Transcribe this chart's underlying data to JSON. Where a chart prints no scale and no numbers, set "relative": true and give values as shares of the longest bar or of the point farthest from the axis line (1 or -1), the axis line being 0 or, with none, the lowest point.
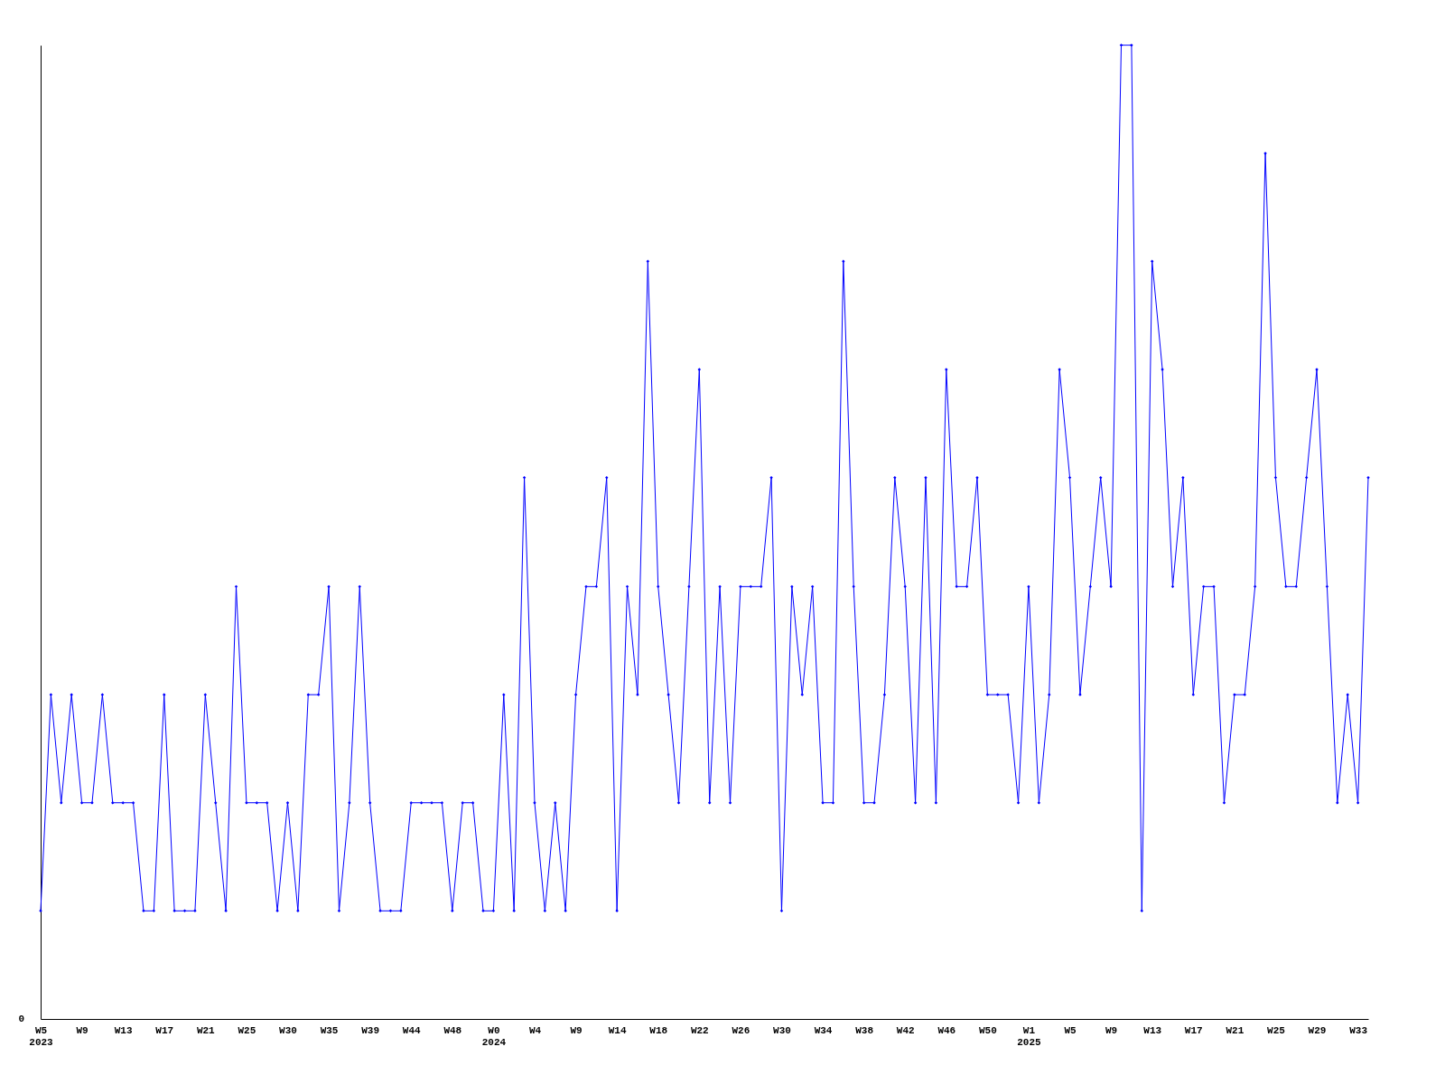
{
  "chart_data": {
    "type": "line",
    "relative": true,
    "marker": "diamond",
    "line_style": "solid",
    "grid": false,
    "annotations": [
      "0"
    ],
    "categories": [
      "W5\n2023",
      null,
      null,
      null,
      "W9",
      null,
      null,
      null,
      "W13",
      null,
      null,
      null,
      "W17",
      null,
      null,
      null,
      "W21",
      null,
      null,
      null,
      "W25",
      null,
      null,
      null,
      "W30",
      null,
      null,
      null,
      "W35",
      null,
      null,
      null,
      "W39",
      null,
      null,
      null,
      "W44",
      null,
      null,
      null,
      "W48",
      null,
      null,
      null,
      "W0\n2024",
      null,
      null,
      null,
      "W4",
      null,
      null,
      null,
      "W9",
      null,
      null,
      null,
      "W14",
      null,
      null,
      null,
      "W18",
      null,
      null,
      null,
      "W22",
      null,
      null,
      null,
      "W26",
      null,
      null,
      null,
      "W30",
      null,
      null,
      null,
      "W34",
      null,
      null,
      null,
      "W38",
      null,
      null,
      null,
      "W42",
      null,
      null,
      null,
      "W46",
      null,
      null,
      null,
      "W50",
      null,
      null,
      null,
      "W1\n2025",
      null,
      null,
      null,
      "W5",
      null,
      null,
      null,
      "W9",
      null,
      null,
      null,
      "W13",
      null,
      null,
      null,
      "W17",
      null,
      null,
      null,
      "W21",
      null,
      null,
      null,
      "W25",
      null,
      null,
      null,
      "W29",
      null,
      null,
      null,
      "W33",
      null
    ],
    "series": [
      {
        "color": "#0000ff",
        "values": [
          0.111,
          0.333,
          0.222,
          0.333,
          0.222,
          0.222,
          0.333,
          0.222,
          0.222,
          0.222,
          0.111,
          0.111,
          0.333,
          0.111,
          0.111,
          0.111,
          0.333,
          0.222,
          0.111,
          0.444,
          0.222,
          0.222,
          0.222,
          0.111,
          0.222,
          0.111,
          0.333,
          0.333,
          0.444,
          0.111,
          0.222,
          0.444,
          0.222,
          0.111,
          0.111,
          0.111,
          0.222,
          0.222,
          0.222,
          0.222,
          0.111,
          0.222,
          0.222,
          0.111,
          0.111,
          0.333,
          0.111,
          0.556,
          0.222,
          0.111,
          0.222,
          0.111,
          0.333,
          0.444,
          0.444,
          0.556,
          0.111,
          0.444,
          0.333,
          0.778,
          0.444,
          0.333,
          0.222,
          0.444,
          0.667,
          0.222,
          0.444,
          0.222,
          0.444,
          0.444,
          0.444,
          0.556,
          0.111,
          0.444,
          0.333,
          0.444,
          0.222,
          0.222,
          0.778,
          0.444,
          0.222,
          0.222,
          0.333,
          0.556,
          0.444,
          0.222,
          0.556,
          0.222,
          0.667,
          0.444,
          0.444,
          0.556,
          0.333,
          0.333,
          0.333,
          0.222,
          0.444,
          0.222,
          0.333,
          0.667,
          0.556,
          0.333,
          0.444,
          0.556,
          0.444,
          1,
          1,
          0.111,
          0.778,
          0.667,
          0.444,
          0.556,
          0.333,
          0.444,
          0.444,
          0.222,
          0.333,
          0.333,
          0.444,
          0.889,
          0.556,
          0.444,
          0.444,
          0.556,
          0.667,
          0.444,
          0.222,
          0.333,
          0.222,
          0.556
        ]
      }
    ]
  }
}
